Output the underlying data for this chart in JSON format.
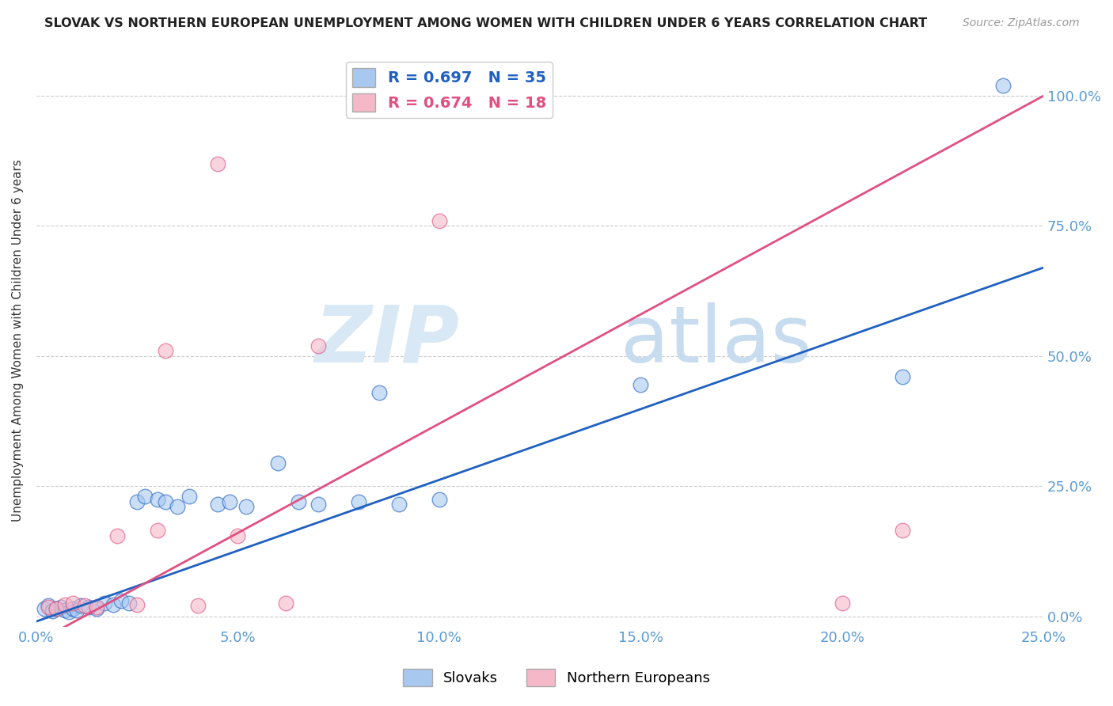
{
  "title": "SLOVAK VS NORTHERN EUROPEAN UNEMPLOYMENT AMONG WOMEN WITH CHILDREN UNDER 6 YEARS CORRELATION CHART",
  "source": "Source: ZipAtlas.com",
  "ylabel": "Unemployment Among Women with Children Under 6 years",
  "watermark_zip": "ZIP",
  "watermark_atlas": "atlas",
  "blue_label": "Slovaks",
  "pink_label": "Northern Europeans",
  "blue_R": 0.697,
  "blue_N": 35,
  "pink_R": 0.674,
  "pink_N": 18,
  "blue_color": "#A8C8F0",
  "pink_color": "#F5B8C8",
  "blue_line_color": "#2060C0",
  "pink_line_color": "#E05080",
  "axis_tick_color": "#5B9BD5",
  "xmin": 0.0,
  "xmax": 0.25,
  "ymin": -0.02,
  "ymax": 1.08,
  "xticks": [
    0.0,
    0.05,
    0.1,
    0.15,
    0.2,
    0.25
  ],
  "yticks": [
    0.0,
    0.25,
    0.5,
    0.75,
    1.0
  ],
  "blue_slope": 2.72,
  "blue_intercept": -0.01,
  "pink_slope": 4.2,
  "pink_intercept": -0.05,
  "blue_points_x": [
    0.002,
    0.003,
    0.004,
    0.005,
    0.006,
    0.007,
    0.008,
    0.009,
    0.01,
    0.011,
    0.013,
    0.015,
    0.017,
    0.019,
    0.021,
    0.023,
    0.025,
    0.027,
    0.03,
    0.032,
    0.035,
    0.038,
    0.045,
    0.048,
    0.052,
    0.06,
    0.065,
    0.07,
    0.08,
    0.085,
    0.09,
    0.1,
    0.15,
    0.215,
    0.24
  ],
  "blue_points_y": [
    0.015,
    0.02,
    0.01,
    0.015,
    0.018,
    0.012,
    0.008,
    0.015,
    0.012,
    0.02,
    0.018,
    0.015,
    0.025,
    0.022,
    0.03,
    0.025,
    0.22,
    0.23,
    0.225,
    0.22,
    0.21,
    0.23,
    0.215,
    0.22,
    0.21,
    0.295,
    0.22,
    0.215,
    0.22,
    0.43,
    0.215,
    0.225,
    0.445,
    0.46,
    1.02
  ],
  "pink_points_x": [
    0.003,
    0.005,
    0.007,
    0.009,
    0.012,
    0.015,
    0.02,
    0.025,
    0.03,
    0.032,
    0.04,
    0.045,
    0.05,
    0.062,
    0.07,
    0.1,
    0.2,
    0.215
  ],
  "pink_points_y": [
    0.018,
    0.015,
    0.022,
    0.025,
    0.02,
    0.018,
    0.155,
    0.022,
    0.165,
    0.51,
    0.02,
    0.87,
    0.155,
    0.025,
    0.52,
    0.76,
    0.025,
    0.165
  ]
}
